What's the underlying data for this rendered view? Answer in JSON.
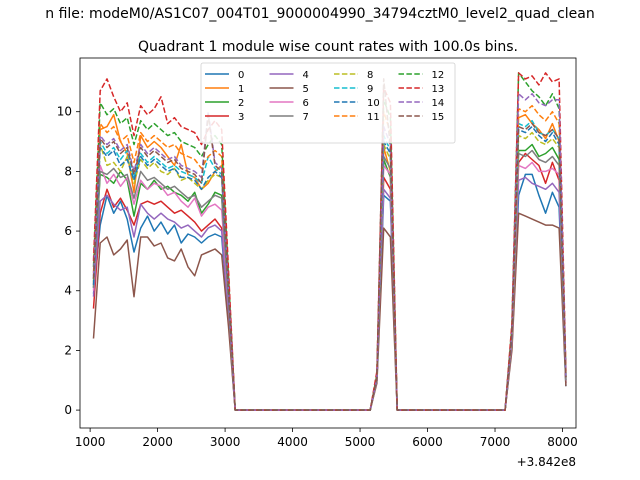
{
  "figure_title": "n file: modeM0/AS1C07_004T01_9000004990_34794cztM0_level2_quad_clean",
  "chart_data": {
    "type": "line",
    "title": "Quadrant 1 module wise count rates with 100.0s bins.",
    "xlabel": "",
    "ylabel": "",
    "x_offset_label": "+3.842e8",
    "xlim": [
      850,
      8200
    ],
    "ylim": [
      -0.6,
      11.8
    ],
    "xticks": [
      1000,
      2000,
      3000,
      4000,
      5000,
      6000,
      7000,
      8000
    ],
    "xtick_labels": [
      "1000",
      "2000",
      "3000",
      "4000",
      "5000",
      "6000",
      "7000",
      "8000"
    ],
    "yticks": [
      0,
      2,
      4,
      6,
      8,
      10
    ],
    "ytick_labels": [
      "0",
      "2",
      "4",
      "6",
      "8",
      "10"
    ],
    "legend_loc": "upper center",
    "legend_columns": 4,
    "grid": false,
    "x": [
      1050,
      1150,
      1250,
      1350,
      1450,
      1550,
      1650,
      1750,
      1850,
      1950,
      2050,
      2150,
      2250,
      2350,
      2450,
      2550,
      2650,
      2750,
      2850,
      2950,
      3050,
      3150,
      3250,
      5050,
      5150,
      5250,
      5350,
      5450,
      5550,
      5650,
      5750,
      7050,
      7150,
      7250,
      7350,
      7450,
      7550,
      7650,
      7750,
      7850,
      7950,
      8050
    ],
    "series": [
      {
        "name": "0",
        "color": "#1f77b4",
        "dash": "solid",
        "values": [
          3.9,
          6.2,
          7.2,
          6.6,
          7.0,
          6.4,
          5.3,
          6.1,
          6.5,
          6.0,
          6.3,
          5.9,
          6.2,
          5.6,
          5.9,
          5.8,
          5.6,
          5.8,
          5.9,
          5.8,
          3.0,
          0,
          0,
          0,
          0,
          1.0,
          7.2,
          7.0,
          0,
          0,
          0,
          0,
          0,
          2.1,
          7.2,
          7.9,
          7.9,
          7.2,
          6.6,
          7.3,
          6.8,
          0.8
        ]
      },
      {
        "name": "1",
        "color": "#ff7f0e",
        "dash": "solid",
        "values": [
          4.2,
          9.4,
          9.5,
          9.9,
          9.0,
          8.6,
          7.3,
          9.2,
          8.8,
          9.0,
          8.8,
          8.5,
          8.2,
          8.9,
          7.9,
          7.8,
          7.4,
          7.6,
          8.0,
          8.2,
          4.2,
          0,
          0,
          0,
          0,
          1.1,
          8.8,
          8.0,
          0,
          0,
          0,
          0,
          0,
          2.6,
          9.8,
          9.9,
          9.6,
          9.4,
          9.1,
          9.6,
          9.0,
          1.1
        ]
      },
      {
        "name": "2",
        "color": "#2ca02c",
        "dash": "solid",
        "values": [
          4.1,
          7.9,
          7.8,
          7.6,
          8.0,
          7.7,
          6.5,
          7.6,
          7.4,
          7.7,
          7.4,
          7.5,
          7.3,
          7.2,
          7.0,
          7.3,
          6.6,
          6.9,
          7.3,
          7.2,
          3.7,
          0,
          0,
          0,
          0,
          1.0,
          8.4,
          7.8,
          0,
          0,
          0,
          0,
          0,
          2.4,
          8.7,
          8.7,
          8.9,
          8.5,
          8.6,
          8.8,
          8.4,
          1.0
        ]
      },
      {
        "name": "3",
        "color": "#d62728",
        "dash": "solid",
        "values": [
          3.4,
          6.6,
          7.4,
          6.8,
          7.1,
          6.7,
          6.2,
          6.9,
          7.0,
          6.9,
          7.0,
          6.8,
          6.6,
          6.7,
          6.5,
          6.3,
          6.0,
          6.2,
          6.4,
          6.1,
          3.2,
          0,
          0,
          0,
          0,
          1.0,
          7.8,
          7.4,
          0,
          0,
          0,
          0,
          0,
          2.3,
          8.3,
          8.6,
          8.4,
          8.2,
          7.6,
          8.3,
          7.7,
          0.9
        ]
      },
      {
        "name": "4",
        "color": "#9467bd",
        "dash": "solid",
        "values": [
          3.8,
          7.0,
          7.2,
          6.9,
          6.7,
          6.8,
          5.8,
          6.9,
          6.6,
          6.4,
          6.6,
          6.4,
          6.3,
          6.1,
          6.2,
          6.0,
          5.8,
          6.1,
          6.2,
          6.0,
          3.1,
          0,
          0,
          0,
          0,
          1.0,
          7.4,
          7.1,
          0,
          0,
          0,
          0,
          0,
          2.2,
          7.7,
          7.8,
          7.6,
          7.5,
          7.4,
          7.6,
          7.3,
          0.9
        ]
      },
      {
        "name": "5",
        "color": "#8c564b",
        "dash": "solid",
        "values": [
          2.4,
          5.6,
          5.8,
          5.2,
          5.4,
          5.7,
          3.8,
          5.8,
          5.8,
          5.5,
          5.6,
          5.1,
          5.0,
          5.4,
          4.8,
          4.5,
          5.2,
          5.3,
          5.4,
          5.2,
          2.8,
          0,
          0,
          0,
          0,
          0.9,
          6.1,
          5.8,
          0,
          0,
          0,
          0,
          0,
          2.0,
          6.6,
          6.5,
          6.4,
          6.3,
          6.2,
          6.2,
          6.1,
          0.8
        ]
      },
      {
        "name": "6",
        "color": "#e377c2",
        "dash": "solid",
        "values": [
          4.0,
          8.2,
          7.6,
          7.9,
          7.5,
          7.8,
          6.9,
          7.7,
          7.4,
          7.6,
          7.5,
          7.2,
          7.3,
          7.0,
          6.8,
          7.1,
          6.5,
          6.8,
          6.9,
          6.7,
          3.5,
          0,
          0,
          0,
          0,
          1.0,
          8.2,
          7.9,
          0,
          0,
          0,
          0,
          0,
          2.3,
          8.2,
          8.1,
          8.3,
          8.0,
          8.0,
          8.1,
          7.9,
          1.0
        ]
      },
      {
        "name": "7",
        "color": "#7f7f7f",
        "dash": "solid",
        "values": [
          4.1,
          8.0,
          7.9,
          8.1,
          7.8,
          7.9,
          7.1,
          8.0,
          7.7,
          7.8,
          7.6,
          7.4,
          7.5,
          7.3,
          7.1,
          7.2,
          6.8,
          7.0,
          7.2,
          7.1,
          3.6,
          0,
          0,
          0,
          0,
          1.0,
          8.5,
          8.1,
          0,
          0,
          0,
          0,
          0,
          2.4,
          8.6,
          8.5,
          8.7,
          8.4,
          8.3,
          8.5,
          8.2,
          1.0
        ]
      },
      {
        "name": "8",
        "color": "#bcbd22",
        "dash": "dashed",
        "values": [
          4.3,
          8.9,
          8.2,
          8.3,
          8.0,
          8.5,
          7.6,
          8.4,
          8.1,
          8.3,
          8.0,
          7.9,
          8.1,
          7.7,
          7.8,
          7.6,
          7.4,
          7.7,
          7.9,
          7.8,
          3.9,
          0,
          0,
          0,
          0,
          1.1,
          8.9,
          8.4,
          0,
          0,
          0,
          0,
          0,
          2.5,
          9.2,
          9.1,
          9.3,
          9.0,
          8.9,
          9.1,
          8.8,
          1.1
        ]
      },
      {
        "name": "9",
        "color": "#17becf",
        "dash": "dashed",
        "values": [
          4.4,
          9.0,
          8.6,
          8.8,
          8.4,
          8.7,
          7.8,
          8.6,
          8.3,
          8.5,
          8.3,
          8.1,
          8.2,
          8.0,
          7.9,
          7.8,
          7.6,
          8.5,
          8.1,
          7.9,
          4.0,
          0,
          0,
          0,
          0,
          1.1,
          9.2,
          8.7,
          0,
          0,
          0,
          0,
          0,
          2.6,
          9.6,
          9.5,
          9.7,
          9.3,
          9.2,
          9.4,
          9.1,
          1.1
        ]
      },
      {
        "name": "10",
        "color": "#1f77b4",
        "dash": "dashed",
        "values": [
          4.2,
          8.8,
          8.5,
          8.7,
          8.2,
          8.4,
          7.7,
          8.5,
          8.2,
          8.4,
          8.2,
          8.0,
          8.1,
          7.8,
          7.8,
          7.7,
          7.4,
          7.8,
          8.0,
          7.8,
          3.9,
          0,
          0,
          0,
          0,
          1.1,
          9.0,
          8.6,
          0,
          0,
          0,
          0,
          0,
          2.5,
          9.4,
          9.3,
          9.5,
          9.2,
          9.0,
          9.3,
          8.9,
          1.1
        ]
      },
      {
        "name": "11",
        "color": "#ff7f0e",
        "dash": "dashed",
        "values": [
          4.6,
          9.6,
          9.3,
          9.5,
          9.0,
          9.2,
          8.3,
          9.3,
          9.0,
          9.2,
          9.0,
          8.8,
          8.9,
          8.6,
          8.5,
          8.4,
          8.1,
          8.5,
          8.7,
          8.5,
          4.3,
          0,
          0,
          0,
          0,
          1.2,
          10.0,
          9.3,
          0,
          0,
          0,
          0,
          0,
          2.7,
          10.1,
          10.0,
          10.2,
          9.9,
          9.7,
          10.0,
          9.6,
          1.2
        ]
      },
      {
        "name": "12",
        "color": "#2ca02c",
        "dash": "dashed",
        "values": [
          4.8,
          10.3,
          9.9,
          10.1,
          9.6,
          9.8,
          8.9,
          9.7,
          9.4,
          9.6,
          9.4,
          9.2,
          9.3,
          9.0,
          8.9,
          8.8,
          8.5,
          8.9,
          9.2,
          8.9,
          4.5,
          0,
          0,
          0,
          0,
          1.2,
          10.4,
          9.8,
          0,
          0,
          0,
          0,
          0,
          2.8,
          11.3,
          11.0,
          10.7,
          10.5,
          10.2,
          10.6,
          10.1,
          1.2
        ]
      },
      {
        "name": "13",
        "color": "#d62728",
        "dash": "dashed",
        "values": [
          5.0,
          10.7,
          11.1,
          10.5,
          10.0,
          10.3,
          9.2,
          10.2,
          9.9,
          10.1,
          10.5,
          9.6,
          9.8,
          9.5,
          9.4,
          9.3,
          8.9,
          9.4,
          9.7,
          9.4,
          4.7,
          0,
          0,
          0,
          0,
          1.3,
          10.8,
          10.3,
          0,
          0,
          0,
          0,
          0,
          2.9,
          11.3,
          11.1,
          11.2,
          10.9,
          11.3,
          11.0,
          11.1,
          1.3
        ]
      },
      {
        "name": "14",
        "color": "#9467bd",
        "dash": "dashed",
        "values": [
          4.5,
          9.2,
          8.9,
          9.1,
          8.7,
          8.9,
          8.0,
          8.9,
          8.6,
          8.8,
          8.6,
          8.4,
          8.5,
          8.2,
          8.1,
          8.0,
          7.8,
          10.0,
          8.3,
          8.1,
          4.1,
          0,
          0,
          0,
          0,
          1.1,
          9.5,
          8.9,
          0,
          0,
          0,
          0,
          0,
          2.6,
          10.6,
          10.4,
          10.6,
          10.3,
          10.2,
          10.4,
          10.4,
          1.1
        ]
      },
      {
        "name": "15",
        "color": "#8c564b",
        "dash": "dashed",
        "values": [
          4.4,
          9.1,
          8.8,
          9.0,
          8.6,
          8.8,
          7.9,
          8.8,
          8.5,
          8.7,
          8.5,
          8.3,
          8.4,
          8.1,
          8.0,
          7.9,
          7.6,
          9.9,
          8.2,
          8.0,
          4.0,
          0,
          0,
          0,
          0,
          1.1,
          11.1,
          8.8,
          0,
          0,
          0,
          0,
          0,
          2.6,
          9.5,
          9.4,
          9.6,
          9.3,
          9.2,
          9.4,
          9.1,
          1.1
        ]
      }
    ]
  }
}
